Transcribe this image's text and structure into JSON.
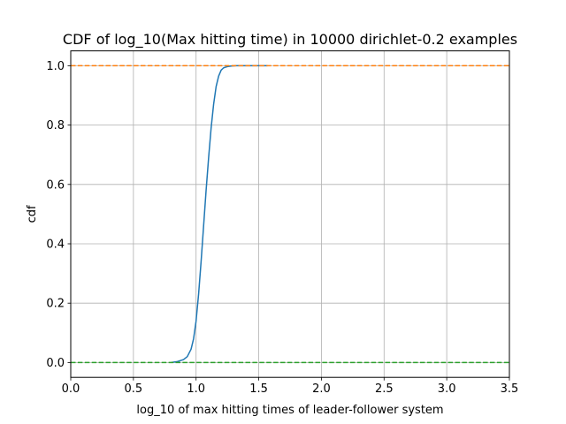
{
  "chart_data": {
    "type": "line",
    "title": "CDF of log_10(Max hitting time) in 10000 dirichlet-0.2 examples",
    "xlabel": "log_10 of max hitting times of leader-follower system",
    "ylabel": "cdf",
    "xlim": [
      0.0,
      3.5
    ],
    "ylim": [
      -0.05,
      1.05
    ],
    "xticks": [
      "0.0",
      "0.5",
      "1.0",
      "1.5",
      "2.0",
      "2.5",
      "3.0",
      "3.5"
    ],
    "yticks": [
      "0.0",
      "0.2",
      "0.4",
      "0.6",
      "0.8",
      "1.0"
    ],
    "grid": true,
    "series": [
      {
        "color": "#1f77b4",
        "style": "solid",
        "x": [
          0.8,
          0.85,
          0.9,
          0.93,
          0.96,
          0.98,
          1.0,
          1.02,
          1.04,
          1.06,
          1.08,
          1.1,
          1.12,
          1.14,
          1.16,
          1.18,
          1.2,
          1.22,
          1.25,
          1.28,
          1.32,
          1.4,
          1.5,
          1.57
        ],
        "y": [
          0.0,
          0.003,
          0.01,
          0.02,
          0.045,
          0.08,
          0.14,
          0.23,
          0.34,
          0.46,
          0.58,
          0.69,
          0.79,
          0.87,
          0.93,
          0.965,
          0.985,
          0.993,
          0.997,
          0.999,
          1.0,
          1.0,
          1.0,
          1.0
        ]
      },
      {
        "color": "#ff7f0e",
        "style": "dashed",
        "x": [
          0.0,
          3.5
        ],
        "y": [
          1.0,
          1.0
        ]
      },
      {
        "color": "#2ca02c",
        "style": "dashed",
        "x": [
          0.0,
          3.5
        ],
        "y": [
          0.0,
          0.0
        ]
      }
    ]
  }
}
